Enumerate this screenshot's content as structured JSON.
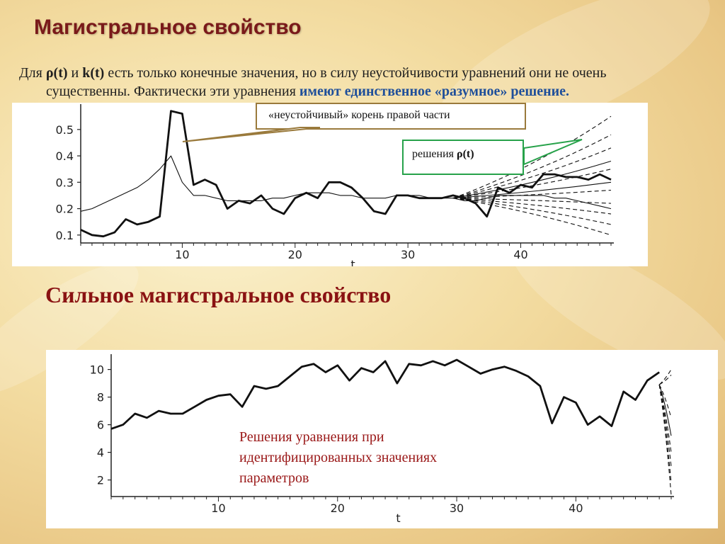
{
  "slide": {
    "title": "Магистральное свойство",
    "intro_part1": "Для ",
    "rho_t": "ρ(t)",
    "and": " и ",
    "k_t": "k(t)",
    "intro_part2": "  есть только конечные значения, но в силу неустойчивости уравнений они не очень",
    "intro_line2_plain": "существенны. Фактически эти уравнения ",
    "intro_line2_highlight": "имеют единственное «разумное» решение.",
    "subtitle": "Сильное магистральное свойство"
  },
  "chart1": {
    "callout_unstable": "«неустойчивый» корень правой части",
    "callout_solutions_prefix": "решения ",
    "callout_solutions_symbol": "ρ(t)"
  },
  "chart2": {
    "note": "Решения уравнения при идентифицированных значениях параметров"
  },
  "colors": {
    "title": "#7a1a1a",
    "subtitle": "#8a1212",
    "highlight": "#1f4f9a",
    "note": "#9a1818",
    "callout_gold_border": "#9a7a3c",
    "callout_green_border": "#27a24a"
  },
  "chart_data": [
    {
      "type": "line",
      "xlabel": "t",
      "xticks": [
        10,
        20,
        30,
        40
      ],
      "yticks": [
        0.1,
        0.2,
        0.3,
        0.4,
        0.5
      ],
      "xlim": [
        1,
        48
      ],
      "ylim": [
        0.07,
        0.58
      ],
      "series": [
        {
          "style": "thick",
          "x": [
            1,
            2,
            3,
            4,
            5,
            6,
            7,
            8,
            9,
            10,
            11,
            12,
            13,
            14,
            15,
            16,
            17,
            18,
            19,
            20,
            21,
            22,
            23,
            24,
            25,
            26,
            27,
            28,
            29,
            30,
            31,
            32,
            33,
            34,
            35,
            36,
            37,
            38,
            39,
            40,
            41,
            42,
            43,
            44,
            45,
            46,
            47,
            48
          ],
          "y": [
            0.12,
            0.1,
            0.095,
            0.11,
            0.16,
            0.14,
            0.15,
            0.17,
            0.57,
            0.56,
            0.29,
            0.31,
            0.29,
            0.2,
            0.23,
            0.22,
            0.25,
            0.2,
            0.18,
            0.24,
            0.26,
            0.24,
            0.3,
            0.3,
            0.28,
            0.24,
            0.19,
            0.18,
            0.25,
            0.25,
            0.24,
            0.24,
            0.24,
            0.25,
            0.24,
            0.22,
            0.17,
            0.28,
            0.26,
            0.29,
            0.28,
            0.33,
            0.33,
            0.32,
            0.32,
            0.31,
            0.33,
            0.31
          ]
        },
        {
          "style": "thin",
          "x": [
            1,
            2,
            3,
            4,
            5,
            6,
            7,
            8,
            9,
            10,
            11,
            12,
            13,
            14,
            15,
            16,
            17,
            18,
            19,
            20,
            21,
            22,
            23,
            24,
            25,
            26,
            27,
            28,
            29,
            30,
            31,
            32,
            33,
            34,
            35,
            36,
            37,
            38,
            39,
            40,
            41,
            42,
            43,
            44,
            45,
            46,
            47,
            48
          ],
          "y": [
            0.19,
            0.2,
            0.22,
            0.24,
            0.26,
            0.28,
            0.31,
            0.35,
            0.4,
            0.3,
            0.25,
            0.25,
            0.24,
            0.23,
            0.23,
            0.23,
            0.23,
            0.24,
            0.24,
            0.25,
            0.26,
            0.26,
            0.26,
            0.25,
            0.25,
            0.24,
            0.24,
            0.24,
            0.25,
            0.25,
            0.25,
            0.24,
            0.24,
            0.24,
            0.23,
            0.23,
            0.24,
            0.25,
            0.25,
            0.25,
            0.25,
            0.25,
            0.24,
            0.24,
            0.23,
            0.22,
            0.21,
            0.2
          ]
        }
      ],
      "fan_from": {
        "x": 34,
        "y": 0.24
      },
      "fan_ends": [
        {
          "x": 48,
          "y": 0.55,
          "dash": true
        },
        {
          "x": 48,
          "y": 0.48,
          "dash": true
        },
        {
          "x": 48,
          "y": 0.43,
          "dash": true
        },
        {
          "x": 48,
          "y": 0.38,
          "dash": false
        },
        {
          "x": 48,
          "y": 0.35,
          "dash": true
        },
        {
          "x": 48,
          "y": 0.3,
          "dash": false
        },
        {
          "x": 48,
          "y": 0.27,
          "dash": true
        },
        {
          "x": 48,
          "y": 0.22,
          "dash": true
        },
        {
          "x": 48,
          "y": 0.18,
          "dash": true
        },
        {
          "x": 48,
          "y": 0.14,
          "dash": true
        },
        {
          "x": 48,
          "y": 0.1,
          "dash": true
        }
      ]
    },
    {
      "type": "line",
      "xlabel": "t",
      "xticks": [
        10,
        20,
        30,
        40
      ],
      "yticks": [
        2,
        4,
        6,
        8,
        10
      ],
      "xlim": [
        1,
        48
      ],
      "ylim": [
        0.8,
        10.8
      ],
      "series": [
        {
          "style": "thick",
          "x": [
            1,
            2,
            3,
            4,
            5,
            6,
            7,
            8,
            9,
            10,
            11,
            12,
            13,
            14,
            15,
            16,
            17,
            18,
            19,
            20,
            21,
            22,
            23,
            24,
            25,
            26,
            27,
            28,
            29,
            30,
            31,
            32,
            33,
            34,
            35,
            36,
            37,
            38,
            39,
            40,
            41,
            42,
            43,
            44,
            45,
            46,
            47
          ],
          "y": [
            5.7,
            6.0,
            6.8,
            6.5,
            7.0,
            6.8,
            6.8,
            7.3,
            7.8,
            8.1,
            8.2,
            7.3,
            8.8,
            8.6,
            8.8,
            9.5,
            10.2,
            10.4,
            9.8,
            10.3,
            9.2,
            10.1,
            9.8,
            10.6,
            9.0,
            10.4,
            10.3,
            10.6,
            10.3,
            10.7,
            10.2,
            9.7,
            10.0,
            10.2,
            9.9,
            9.5,
            8.8,
            6.1,
            8.0,
            7.6,
            6.0,
            6.6,
            5.9,
            8.4,
            7.8,
            9.2,
            9.8
          ]
        }
      ],
      "fan_from": {
        "x": 47,
        "y": 8.9
      },
      "fan_ends": [
        {
          "x": 48,
          "y": 10.0,
          "dash": true
        },
        {
          "x": 48,
          "y": 9.6,
          "dash": true
        },
        {
          "x": 48,
          "y": 6.5,
          "dash": true
        },
        {
          "x": 48,
          "y": 5.2,
          "dash": false
        },
        {
          "x": 48,
          "y": 4.0,
          "dash": true
        },
        {
          "x": 48,
          "y": 3.0,
          "dash": true
        },
        {
          "x": 48,
          "y": 1.8,
          "dash": true
        },
        {
          "x": 48,
          "y": 0.9,
          "dash": true
        }
      ]
    }
  ]
}
